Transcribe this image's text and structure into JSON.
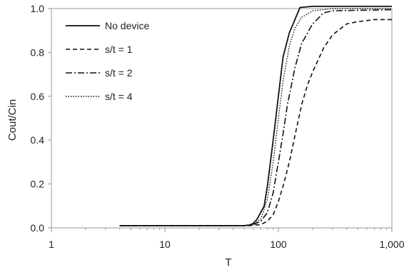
{
  "chart_data": {
    "type": "line",
    "title": "",
    "xlabel": "T",
    "ylabel": "Cout/Cin",
    "x_scale": "log",
    "xlim": [
      1,
      1000
    ],
    "ylim": [
      0,
      1.0
    ],
    "x_ticks": [
      {
        "value": 1,
        "label": "1"
      },
      {
        "value": 10,
        "label": "10"
      },
      {
        "value": 100,
        "label": "100"
      },
      {
        "value": 1000,
        "label": "1,000"
      }
    ],
    "y_ticks": [
      {
        "value": 0,
        "label": "0.0"
      },
      {
        "value": 0.2,
        "label": "0.2"
      },
      {
        "value": 0.4,
        "label": "0.4"
      },
      {
        "value": 0.6,
        "label": "0.6"
      },
      {
        "value": 0.8,
        "label": "0.8"
      },
      {
        "value": 1.0,
        "label": "1.0"
      }
    ],
    "grid": false,
    "legend_position": "top-left",
    "series": [
      {
        "name": "No device",
        "style": "solid",
        "points": [
          [
            4,
            0.01
          ],
          [
            50,
            0.01
          ],
          [
            55,
            0.012
          ],
          [
            60,
            0.02
          ],
          [
            65,
            0.04
          ],
          [
            75,
            0.1
          ],
          [
            80,
            0.19
          ],
          [
            90,
            0.4
          ],
          [
            100,
            0.6
          ],
          [
            110,
            0.78
          ],
          [
            125,
            0.89
          ],
          [
            140,
            0.95
          ],
          [
            155,
            1.005
          ],
          [
            200,
            1.01
          ],
          [
            300,
            1.01
          ],
          [
            1000,
            1.01
          ]
        ]
      },
      {
        "name": "s/t = 1",
        "style": "dashed",
        "points": [
          [
            4,
            0.01
          ],
          [
            55,
            0.01
          ],
          [
            70,
            0.015
          ],
          [
            80,
            0.03
          ],
          [
            90,
            0.06
          ],
          [
            100,
            0.12
          ],
          [
            110,
            0.19
          ],
          [
            125,
            0.3
          ],
          [
            140,
            0.42
          ],
          [
            160,
            0.56
          ],
          [
            180,
            0.65
          ],
          [
            200,
            0.71
          ],
          [
            250,
            0.82
          ],
          [
            300,
            0.88
          ],
          [
            400,
            0.93
          ],
          [
            500,
            0.94
          ],
          [
            700,
            0.95
          ],
          [
            1000,
            0.95
          ]
        ]
      },
      {
        "name": "s/t = 2",
        "style": "dashdot",
        "points": [
          [
            4,
            0.01
          ],
          [
            50,
            0.01
          ],
          [
            60,
            0.015
          ],
          [
            70,
            0.03
          ],
          [
            80,
            0.07
          ],
          [
            90,
            0.16
          ],
          [
            100,
            0.3
          ],
          [
            110,
            0.43
          ],
          [
            120,
            0.56
          ],
          [
            140,
            0.73
          ],
          [
            160,
            0.84
          ],
          [
            200,
            0.93
          ],
          [
            250,
            0.98
          ],
          [
            300,
            0.99
          ],
          [
            1000,
            0.995
          ]
        ]
      },
      {
        "name": "s/t = 4",
        "style": "dotted",
        "points": [
          [
            4,
            0.01
          ],
          [
            50,
            0.01
          ],
          [
            60,
            0.018
          ],
          [
            70,
            0.04
          ],
          [
            80,
            0.13
          ],
          [
            90,
            0.3
          ],
          [
            100,
            0.5
          ],
          [
            110,
            0.67
          ],
          [
            125,
            0.83
          ],
          [
            140,
            0.91
          ],
          [
            160,
            0.96
          ],
          [
            200,
            0.99
          ],
          [
            300,
            1.0
          ],
          [
            1000,
            1.0
          ]
        ]
      }
    ]
  }
}
